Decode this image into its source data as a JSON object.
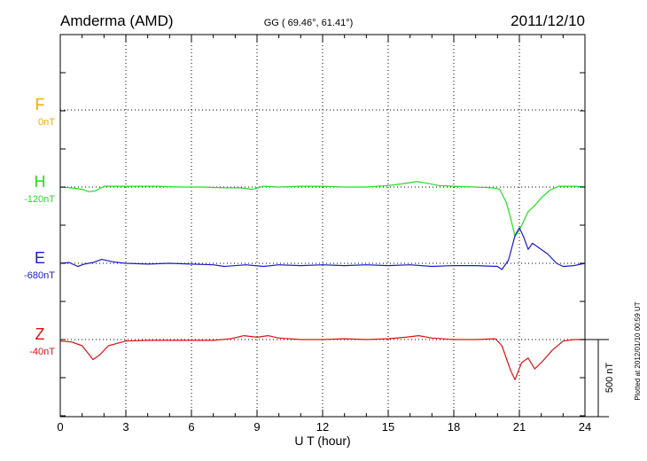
{
  "chart_data": {
    "type": "line",
    "header": {
      "station": "Amderma (AMD)",
      "coords": "GG ( 69.46°,  61.41°)",
      "date": "2011/12/10"
    },
    "xlabel": "U T (hour)",
    "xlim": [
      0,
      24
    ],
    "xticks": [
      0,
      3,
      6,
      9,
      12,
      15,
      18,
      21,
      24
    ],
    "grid": true,
    "scale_bar_label": "500 nT",
    "footer_note": "Plotted at 2012/01/10 00:59 UT",
    "series": [
      {
        "name": "F",
        "baseline_label": "0nT",
        "color": "#f5a800",
        "baseline_value": 0,
        "points": []
      },
      {
        "name": "H",
        "baseline_label": "-120nT",
        "color": "#22dd22",
        "baseline_value": -120,
        "points": [
          [
            0,
            0
          ],
          [
            0.5,
            -5
          ],
          [
            1.0,
            -15
          ],
          [
            1.3,
            -30
          ],
          [
            1.6,
            -25
          ],
          [
            2.0,
            5
          ],
          [
            2.5,
            5
          ],
          [
            3.5,
            5
          ],
          [
            4.5,
            5
          ],
          [
            5.5,
            0
          ],
          [
            6.5,
            0
          ],
          [
            7.5,
            -5
          ],
          [
            8.2,
            -5
          ],
          [
            8.8,
            -15
          ],
          [
            9.3,
            5
          ],
          [
            10.0,
            0
          ],
          [
            11.0,
            5
          ],
          [
            12.0,
            5
          ],
          [
            13.0,
            0
          ],
          [
            14.0,
            0
          ],
          [
            15.0,
            10
          ],
          [
            15.6,
            20
          ],
          [
            16.3,
            35
          ],
          [
            16.8,
            25
          ],
          [
            17.3,
            10
          ],
          [
            18.0,
            5
          ],
          [
            19.0,
            0
          ],
          [
            19.8,
            -5
          ],
          [
            20.1,
            -15
          ],
          [
            20.4,
            -100
          ],
          [
            20.6,
            -200
          ],
          [
            20.8,
            -320
          ],
          [
            21.0,
            -280
          ],
          [
            21.2,
            -220
          ],
          [
            21.4,
            -160
          ],
          [
            21.7,
            -120
          ],
          [
            22.0,
            -70
          ],
          [
            22.4,
            -20
          ],
          [
            22.8,
            5
          ],
          [
            23.2,
            5
          ],
          [
            23.6,
            5
          ],
          [
            24.0,
            0
          ]
        ]
      },
      {
        "name": "E",
        "baseline_label": "-680nT",
        "color": "#1a1acc",
        "baseline_value": -680,
        "points": [
          [
            0,
            0
          ],
          [
            0.4,
            5
          ],
          [
            0.8,
            -20
          ],
          [
            1.1,
            -5
          ],
          [
            1.5,
            5
          ],
          [
            1.9,
            25
          ],
          [
            2.4,
            10
          ],
          [
            3.0,
            0
          ],
          [
            4.0,
            -5
          ],
          [
            5.0,
            0
          ],
          [
            6.0,
            -5
          ],
          [
            7.0,
            -10
          ],
          [
            7.5,
            -20
          ],
          [
            8.5,
            -10
          ],
          [
            9.3,
            -20
          ],
          [
            10.0,
            -10
          ],
          [
            11.0,
            -15
          ],
          [
            12.0,
            -10
          ],
          [
            13.0,
            -15
          ],
          [
            14.0,
            -10
          ],
          [
            15.0,
            -15
          ],
          [
            16.0,
            -10
          ],
          [
            17.0,
            -20
          ],
          [
            18.0,
            -15
          ],
          [
            19.0,
            -15
          ],
          [
            20.0,
            -20
          ],
          [
            20.2,
            -40
          ],
          [
            20.5,
            20
          ],
          [
            20.8,
            180
          ],
          [
            21.0,
            230
          ],
          [
            21.2,
            170
          ],
          [
            21.4,
            90
          ],
          [
            21.6,
            130
          ],
          [
            21.9,
            100
          ],
          [
            22.3,
            60
          ],
          [
            22.7,
            0
          ],
          [
            23.0,
            -20
          ],
          [
            23.5,
            -15
          ],
          [
            24.0,
            0
          ]
        ]
      },
      {
        "name": "Z",
        "baseline_label": "-40nT",
        "color": "#dd1111",
        "baseline_value": -40,
        "points": [
          [
            0,
            -10
          ],
          [
            0.5,
            -15
          ],
          [
            1.0,
            -40
          ],
          [
            1.5,
            -130
          ],
          [
            1.8,
            -100
          ],
          [
            2.2,
            -40
          ],
          [
            3.0,
            -10
          ],
          [
            4.0,
            -5
          ],
          [
            5.0,
            -5
          ],
          [
            6.0,
            -5
          ],
          [
            7.0,
            -5
          ],
          [
            7.8,
            5
          ],
          [
            8.4,
            25
          ],
          [
            9.0,
            15
          ],
          [
            9.5,
            25
          ],
          [
            10.0,
            10
          ],
          [
            11.0,
            0
          ],
          [
            12.0,
            0
          ],
          [
            13.0,
            5
          ],
          [
            14.0,
            0
          ],
          [
            15.0,
            5
          ],
          [
            15.8,
            15
          ],
          [
            16.4,
            25
          ],
          [
            17.0,
            10
          ],
          [
            18.0,
            0
          ],
          [
            19.0,
            0
          ],
          [
            19.9,
            5
          ],
          [
            20.2,
            -40
          ],
          [
            20.6,
            -200
          ],
          [
            20.8,
            -260
          ],
          [
            21.1,
            -150
          ],
          [
            21.4,
            -120
          ],
          [
            21.7,
            -190
          ],
          [
            22.0,
            -150
          ],
          [
            22.5,
            -70
          ],
          [
            23.0,
            -10
          ],
          [
            23.5,
            0
          ],
          [
            24.0,
            0
          ]
        ]
      }
    ]
  }
}
